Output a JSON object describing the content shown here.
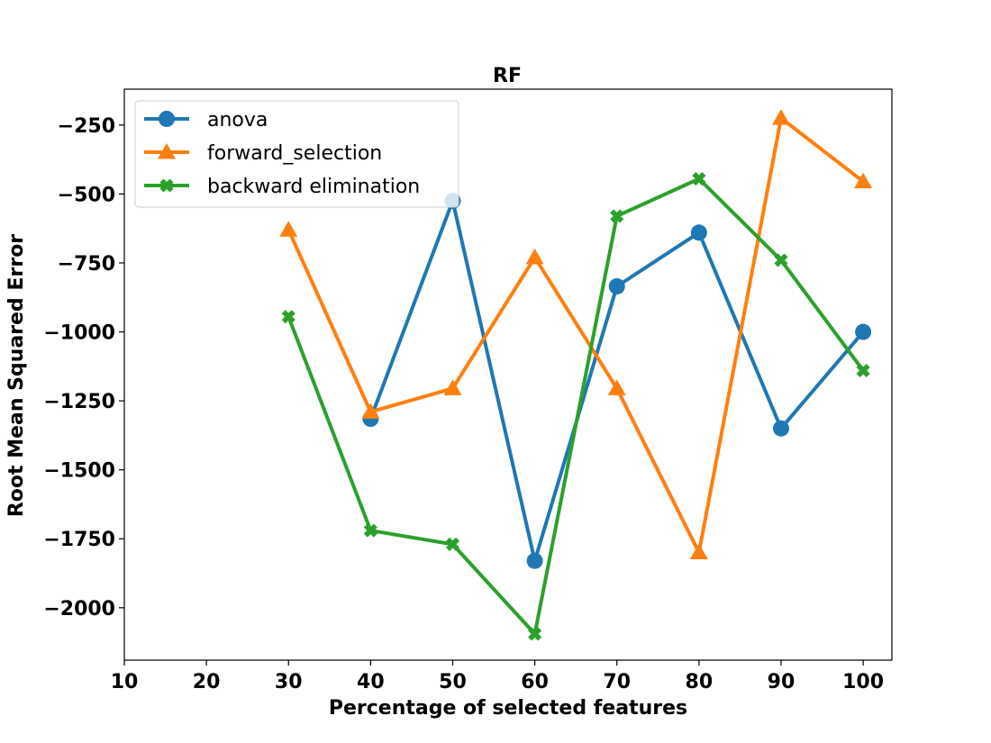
{
  "chart_data": {
    "type": "line",
    "title": "RF",
    "xlabel": "Percentage of selected features",
    "ylabel": "Root Mean Squared Error",
    "xlim": [
      10,
      103.5
    ],
    "ylim": [
      -2190,
      -120
    ],
    "xticks": [
      10,
      20,
      30,
      40,
      50,
      60,
      70,
      80,
      90,
      100
    ],
    "yticks": [
      -250,
      -500,
      -750,
      -1000,
      -1250,
      -1500,
      -1750,
      -2000
    ],
    "ytick_labels": [
      "−250",
      "−500",
      "−750",
      "−1000",
      "−1250",
      "−1500",
      "−1750",
      "−2000"
    ],
    "grid": false,
    "legend_position": "top-left",
    "series": [
      {
        "name": "anova",
        "color": "#1f77b4",
        "marker": "circle",
        "x": [
          40,
          50,
          60,
          70,
          80,
          90,
          100
        ],
        "y": [
          -1315,
          -525,
          -1830,
          -835,
          -640,
          -1350,
          -1000
        ]
      },
      {
        "name": "forward_selection",
        "color": "#ff7f0e",
        "marker": "triangle",
        "x": [
          30,
          40,
          50,
          60,
          70,
          80,
          90,
          100
        ],
        "y": [
          -630,
          -1290,
          -1205,
          -730,
          -1205,
          -1800,
          -225,
          -455
        ]
      },
      {
        "name": "backward elimination",
        "color": "#2ca02c",
        "marker": "x",
        "x": [
          30,
          40,
          50,
          60,
          70,
          80,
          90,
          100
        ],
        "y": [
          -945,
          -1720,
          -1770,
          -2095,
          -580,
          -445,
          -740,
          -1140
        ]
      }
    ]
  }
}
